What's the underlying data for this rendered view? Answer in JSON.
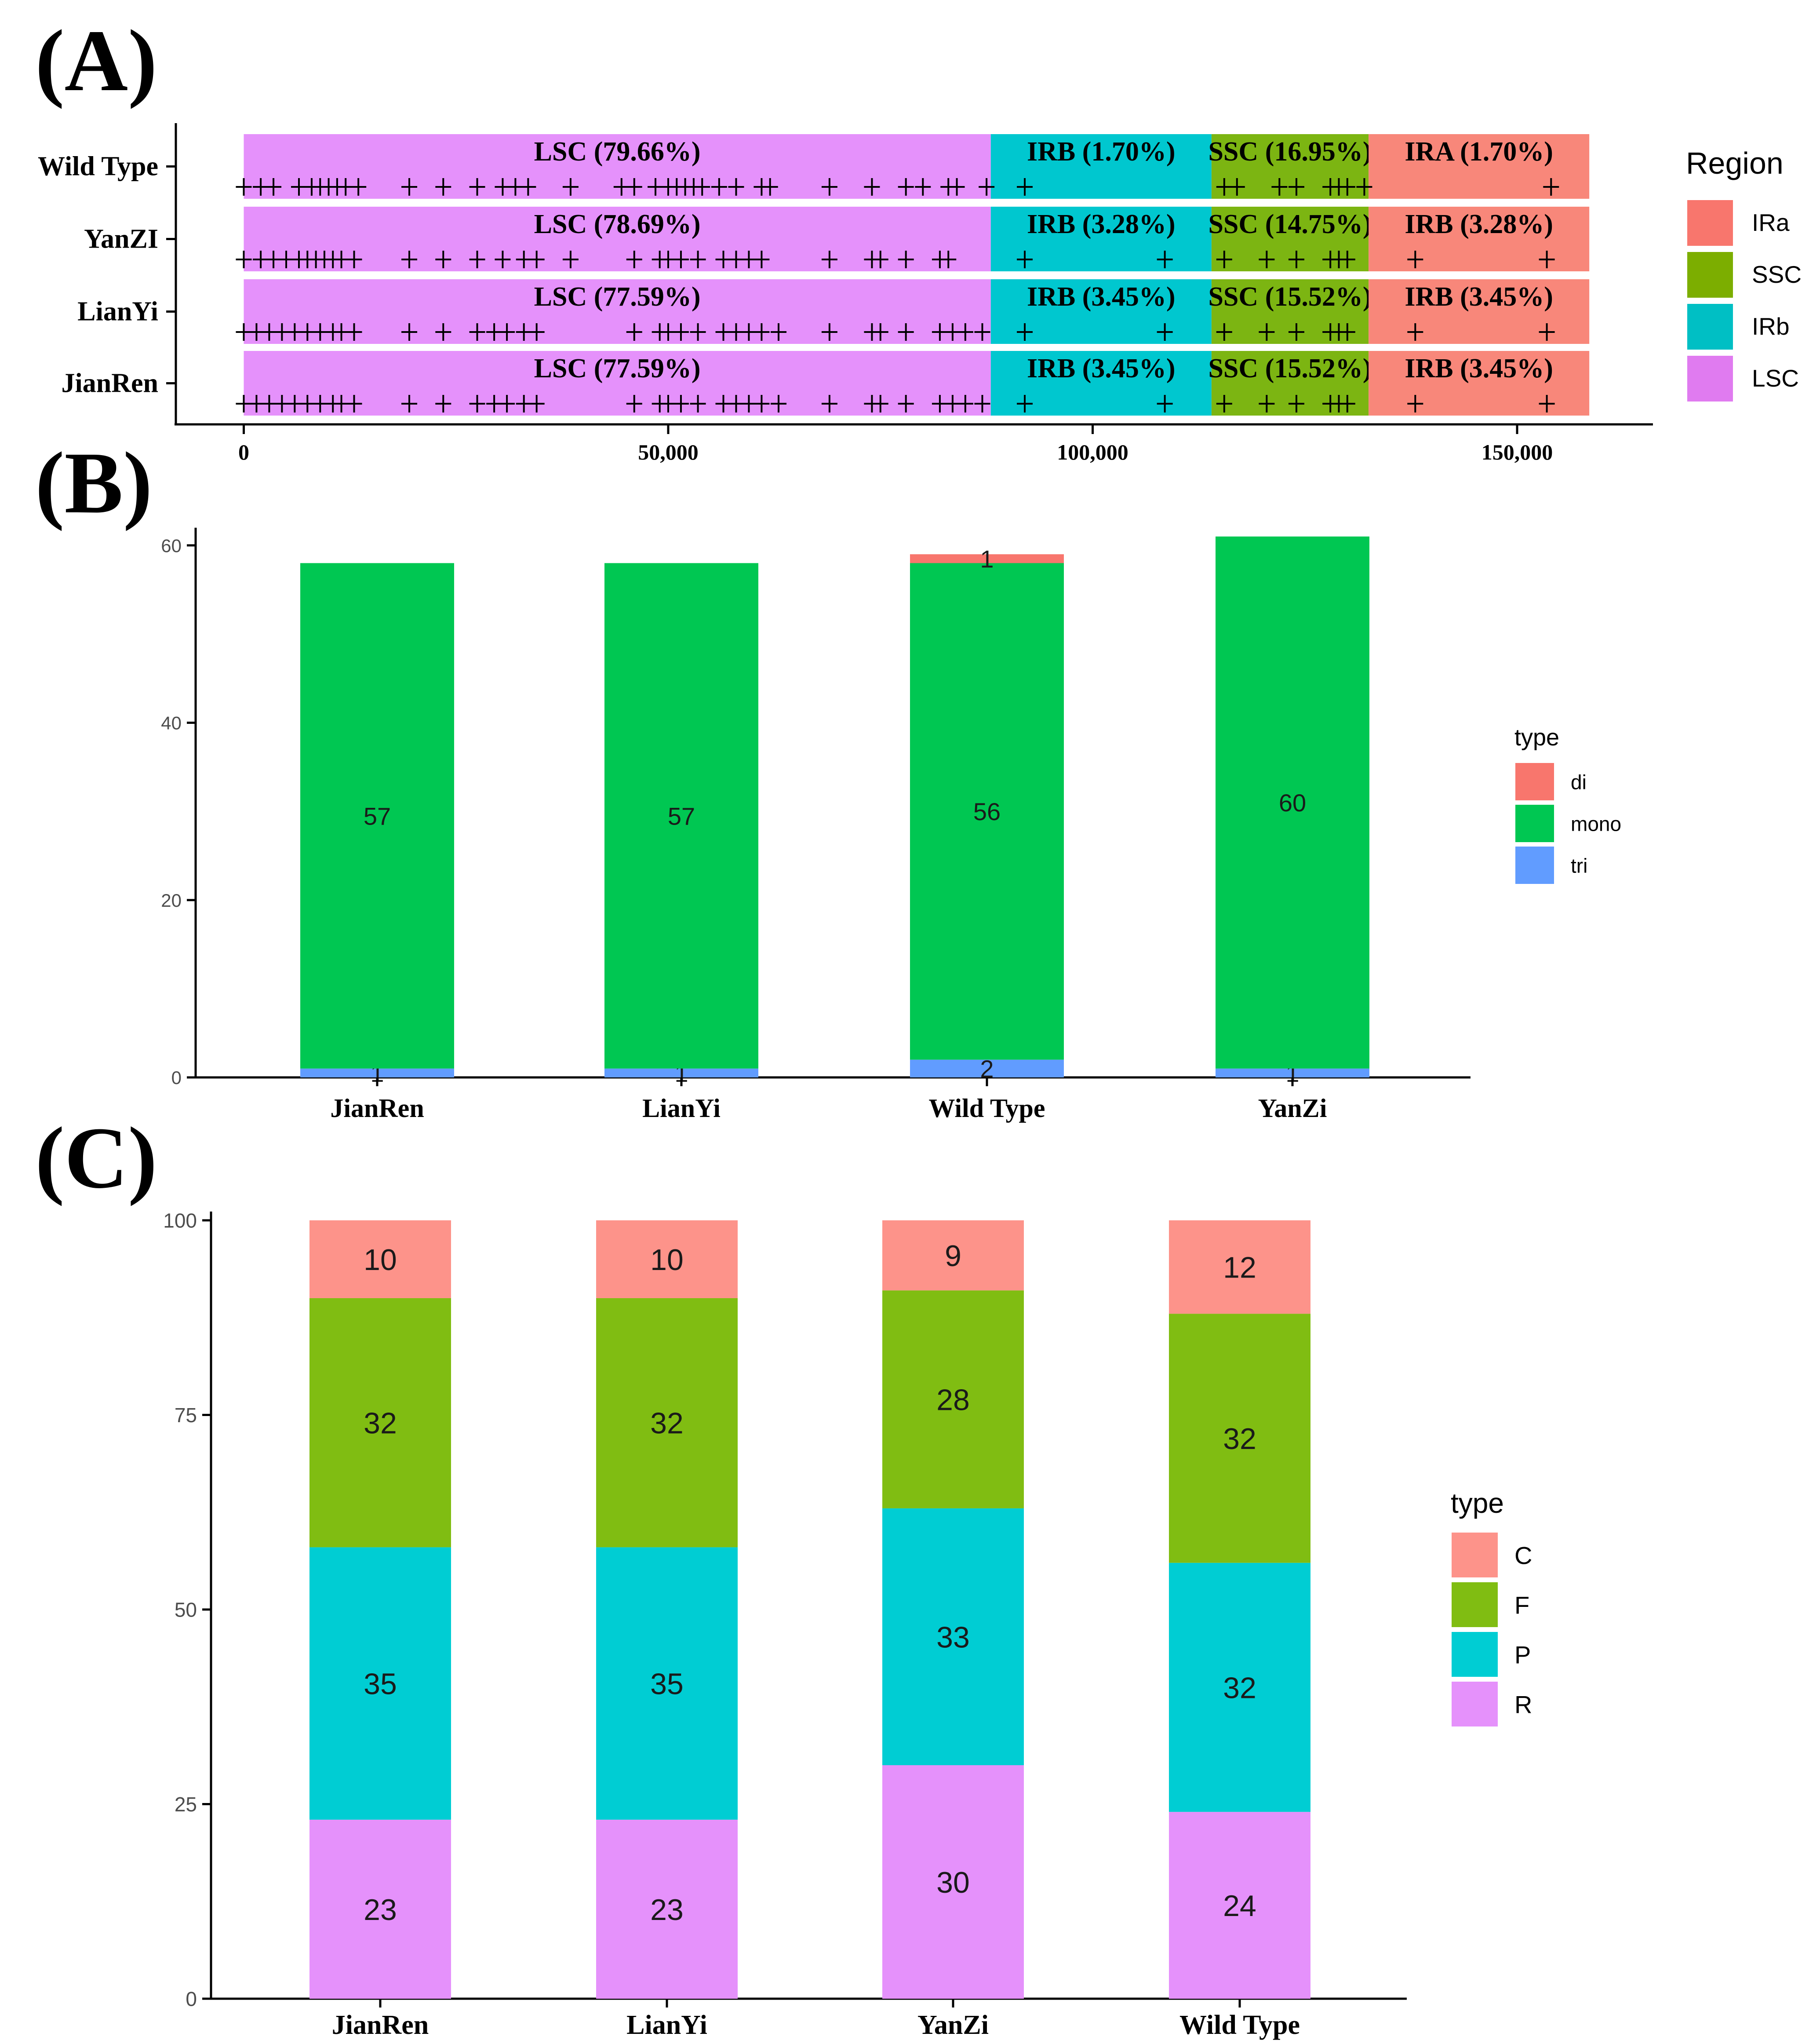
{
  "panels": {
    "a": {
      "letter": "(A)"
    },
    "b": {
      "letter": "(B)"
    },
    "c": {
      "letter": "(C)"
    }
  },
  "chart_data": [
    {
      "id": "A",
      "type": "genome-map",
      "x_ticks": [
        0,
        50000,
        100000,
        150000
      ],
      "x_tick_labels": [
        "0",
        "50,000",
        "100,000",
        "150,000"
      ],
      "xlim": [
        -8000,
        166000
      ],
      "legend": {
        "title": "Region",
        "entries": [
          {
            "label": "IRa",
            "color": "#F8766D"
          },
          {
            "label": "SSC",
            "color": "#7CAE00"
          },
          {
            "label": "IRb",
            "color": "#00BFC4"
          },
          {
            "label": "LSC",
            "color": "#E07BF0"
          }
        ]
      },
      "rows": [
        {
          "name": "Wild Type",
          "segments": [
            {
              "label": "LSC (79.66%)",
              "start": 0,
              "end": 88000,
              "color": "#E591FB"
            },
            {
              "label": "IRB (1.70%)",
              "start": 88000,
              "end": 114000,
              "color": "#00C7CF"
            },
            {
              "label": "SSC (16.95%)",
              "start": 114000,
              "end": 132500,
              "color": "#7CB512"
            },
            {
              "label": "IRA (1.70%)",
              "start": 132500,
              "end": 158500,
              "color": "#F8877A"
            }
          ],
          "ssr_positions": [
            0,
            2000,
            3500,
            6500,
            8000,
            9000,
            10000,
            11000,
            12000,
            13500,
            19500,
            23500,
            27500,
            30500,
            32000,
            33500,
            38500,
            44500,
            46000,
            48500,
            50000,
            51000,
            52000,
            53000,
            54000,
            56000,
            58000,
            61000,
            62000,
            69000,
            74000,
            78000,
            80000,
            83000,
            84000,
            87500,
            92000,
            115500,
            117000,
            122000,
            124000,
            128000,
            129000,
            130000,
            132000,
            154000
          ]
        },
        {
          "name": "YanZI",
          "segments": [
            {
              "label": "LSC (78.69%)",
              "start": 0,
              "end": 88000,
              "color": "#E591FB"
            },
            {
              "label": "IRB (3.28%)",
              "start": 88000,
              "end": 114000,
              "color": "#00C7CF"
            },
            {
              "label": "SSC (14.75%)",
              "start": 114000,
              "end": 132500,
              "color": "#7CB512"
            },
            {
              "label": "IRB (3.28%)",
              "start": 132500,
              "end": 158500,
              "color": "#F8877A"
            }
          ],
          "ssr_positions": [
            0,
            2000,
            3500,
            5000,
            6500,
            7500,
            8500,
            9500,
            10500,
            11500,
            13000,
            19500,
            23500,
            27500,
            30500,
            33000,
            34500,
            38500,
            46000,
            49000,
            50000,
            51500,
            53500,
            56500,
            58000,
            59500,
            61000,
            69000,
            74000,
            75000,
            78000,
            82000,
            83000,
            92000,
            108500,
            115500,
            120500,
            124000,
            128000,
            129000,
            130000,
            138000,
            153500
          ]
        },
        {
          "name": "LianYi",
          "segments": [
            {
              "label": "LSC (77.59%)",
              "start": 0,
              "end": 88000,
              "color": "#E591FB"
            },
            {
              "label": "IRB (3.45%)",
              "start": 88000,
              "end": 114000,
              "color": "#00C7CF"
            },
            {
              "label": "SSC (15.52%)",
              "start": 114000,
              "end": 132500,
              "color": "#7CB512"
            },
            {
              "label": "IRB (3.45%)",
              "start": 132500,
              "end": 158500,
              "color": "#F8877A"
            }
          ],
          "ssr_positions": [
            0,
            1500,
            3000,
            4500,
            6000,
            7500,
            9000,
            10500,
            11500,
            13000,
            19500,
            23500,
            27500,
            29500,
            31000,
            33000,
            34500,
            46000,
            49000,
            50000,
            51500,
            53500,
            56500,
            58000,
            59500,
            61000,
            63000,
            69000,
            74000,
            75000,
            78000,
            82000,
            83500,
            85000,
            87000,
            92000,
            108500,
            115500,
            120500,
            124000,
            128000,
            129000,
            130000,
            138000,
            153500
          ]
        },
        {
          "name": "JianRen",
          "segments": [
            {
              "label": "LSC (77.59%)",
              "start": 0,
              "end": 88000,
              "color": "#E591FB"
            },
            {
              "label": "IRB (3.45%)",
              "start": 88000,
              "end": 114000,
              "color": "#00C7CF"
            },
            {
              "label": "SSC (15.52%)",
              "start": 114000,
              "end": 132500,
              "color": "#7CB512"
            },
            {
              "label": "IRB (3.45%)",
              "start": 132500,
              "end": 158500,
              "color": "#F8877A"
            }
          ],
          "ssr_positions": [
            0,
            1500,
            3000,
            4500,
            6000,
            7500,
            9000,
            10500,
            11500,
            13000,
            19500,
            23500,
            27500,
            29500,
            31000,
            33000,
            34500,
            46000,
            49000,
            50000,
            51500,
            53500,
            56500,
            58000,
            59500,
            61000,
            63000,
            69000,
            74000,
            75000,
            78000,
            82000,
            83500,
            85000,
            87000,
            92000,
            108500,
            115500,
            120500,
            124000,
            128000,
            129000,
            130000,
            138000,
            153500
          ]
        }
      ]
    },
    {
      "id": "B",
      "type": "bar",
      "stacked": true,
      "categories": [
        "JianRen",
        "LianYi",
        "Wild Type",
        "YanZi"
      ],
      "series": [
        {
          "name": "tri",
          "color": "#619CFF",
          "values": [
            1,
            1,
            2,
            1
          ]
        },
        {
          "name": "mono",
          "color": "#00C752",
          "values": [
            57,
            57,
            56,
            60
          ]
        },
        {
          "name": "di",
          "color": "#F8766D",
          "values": [
            0,
            0,
            1,
            0
          ]
        }
      ],
      "ylim": [
        0,
        61
      ],
      "yticks": [
        0,
        20,
        40,
        60
      ],
      "legend_title": "type",
      "legend_order": [
        "di",
        "mono",
        "tri"
      ]
    },
    {
      "id": "C",
      "type": "bar",
      "stacked": true,
      "categories": [
        "JianRen",
        "LianYi",
        "YanZi",
        "Wild Type"
      ],
      "series": [
        {
          "name": "R",
          "color": "#E591FB",
          "values": [
            23,
            23,
            30,
            24
          ]
        },
        {
          "name": "P",
          "color": "#00CDD3",
          "values": [
            35,
            35,
            33,
            32
          ]
        },
        {
          "name": "F",
          "color": "#80BD12",
          "values": [
            32,
            32,
            28,
            32
          ]
        },
        {
          "name": "C",
          "color": "#FD938A",
          "values": [
            10,
            10,
            9,
            12
          ]
        }
      ],
      "ylim": [
        0,
        100
      ],
      "yticks": [
        0,
        25,
        50,
        75,
        100
      ],
      "legend_title": "type",
      "legend_order": [
        "C",
        "F",
        "P",
        "R"
      ]
    }
  ]
}
